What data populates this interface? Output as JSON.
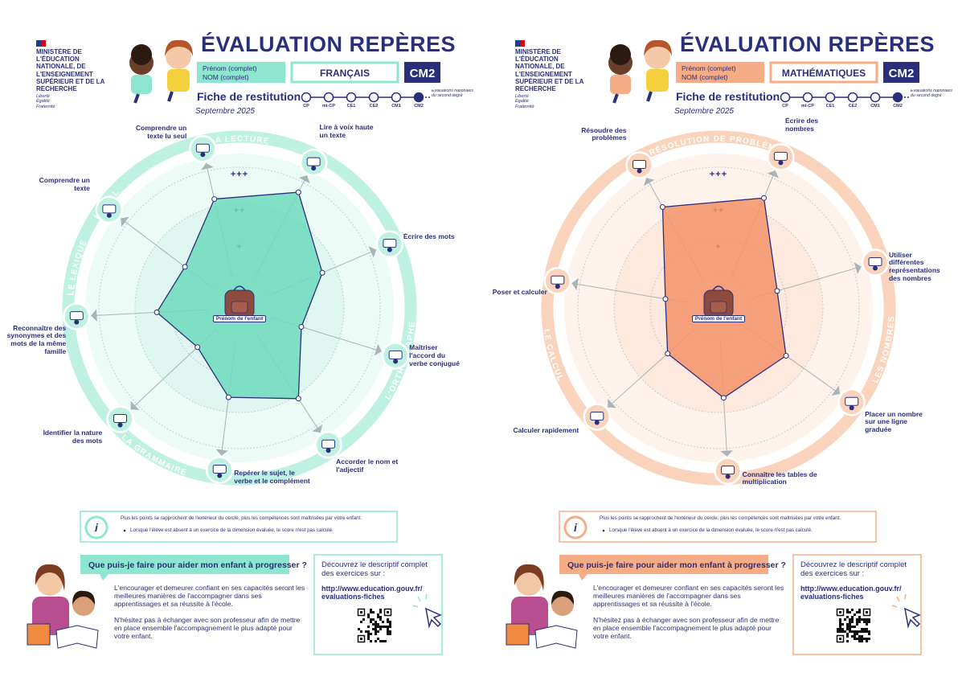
{
  "pages": [
    {
      "ministry": "MINISTÈRE DE L'ÉDUCATION NATIONALE, DE L'ENSEIGNEMENT SUPÉRIEUR ET DE LA RECHERCHE",
      "motto": "Liberté Égalité Fraternité",
      "title": "ÉVALUATION REPÈRES",
      "first_name": "Prénom (complet)",
      "last_name": "NOM (complet)",
      "subject": "FRANÇAIS",
      "grade": "CM2",
      "sheet": "Fiche de restitution",
      "date": "Septembre 2025",
      "timeline": [
        "CP",
        "mi-CP",
        "CE1",
        "CE2",
        "CM1",
        "CM2"
      ],
      "timeline_end": "Évaluations nationales du second degré",
      "radar": {
        "domains": [
          "L'ORAL",
          "LA LECTURE",
          "L'ORTHOGRAPHE",
          "LA GRAMMAIRE",
          "LE LEXIQUE"
        ],
        "axes": [
          {
            "label": "Comprendre un texte lu seul",
            "value": 2.2
          },
          {
            "label": "Lire à voix haute un texte",
            "value": 2.7
          },
          {
            "label": "Écrire des mots",
            "value": 1.6
          },
          {
            "label": "Maîtriser l'accord du verbe conjugué",
            "value": 0.9
          },
          {
            "label": "Accorder le nom et l'adjectif",
            "value": 2.1
          },
          {
            "label": "Repérer le sujet, le verbe et le complément",
            "value": 1.6
          },
          {
            "label": "Identifier la nature des mots",
            "value": 0.7
          },
          {
            "label": "Reconnaître des synonymes et des mots de la même famille",
            "value": 1.4
          },
          {
            "label": "Comprendre un texte",
            "value": 1.0
          }
        ],
        "rlim": [
          0,
          3
        ],
        "rticks": [
          {
            "value": 1,
            "label": "+"
          },
          {
            "value": 2,
            "label": "++"
          },
          {
            "value": 3,
            "label": "+++"
          }
        ],
        "center_label": "Prénom de l'enfant"
      },
      "info": [
        "Plus les points se rapprochent de l'extérieur du cercle, plus les compétences sont maîtrisées par votre enfant.",
        "Lorsque l'élève est absent à un exercice de la dimension évaluée, le score n'est pas calculé."
      ],
      "help": {
        "question": "Que puis-je faire pour aider mon enfant à progresser ?",
        "paragraphs": [
          "L'encourager et demeurer confiant en ses capacités seront les meilleures manières de l'accompagner dans ses apprentissages et sa réussite à l'école.",
          "N'hésitez pas à échanger avec son professeur afin de mettre en place ensemble l'accompagnement le plus adapté pour votre enfant."
        ]
      },
      "resources": {
        "intro": "Découvrez le descriptif complet des exercices sur :",
        "url": "http://www.education.gouv.fr/ evaluations-fiches"
      }
    },
    {
      "ministry": "MINISTÈRE DE L'ÉDUCATION NATIONALE, DE L'ENSEIGNEMENT SUPÉRIEUR ET DE LA RECHERCHE",
      "motto": "Liberté Égalité Fraternité",
      "title": "ÉVALUATION REPÈRES",
      "first_name": "Prénom (complet)",
      "last_name": "NOM (complet)",
      "subject": "MATHÉMATIQUES",
      "grade": "CM2",
      "sheet": "Fiche de restitution",
      "date": "Septembre 2025",
      "timeline": [
        "CP",
        "mi-CP",
        "CE1",
        "CE2",
        "CM1",
        "CM2"
      ],
      "timeline_end": "Évaluations nationales du second degré",
      "radar": {
        "domains": [
          "RÉSOLUTION DE PROBLÈMES",
          "LES NOMBRES",
          "LE CALCUL"
        ],
        "axes": [
          {
            "label": "Résoudre des problèmes",
            "value": 2.3
          },
          {
            "label": "Écrire des nombres",
            "value": 2.4
          },
          {
            "label": "Utiliser différentes représentations des nombres",
            "value": 0.8
          },
          {
            "label": "Placer un nombre sur une ligne graduée",
            "value": 1.4
          },
          {
            "label": "Connaître les tables de multiplication",
            "value": 1.6
          },
          {
            "label": "Calculer rapidement",
            "value": 1.0
          },
          {
            "label": "Poser et calculer",
            "value": 0.6
          }
        ],
        "rlim": [
          0,
          3
        ],
        "rticks": [
          {
            "value": 1,
            "label": "+"
          },
          {
            "value": 2,
            "label": "++"
          },
          {
            "value": 3,
            "label": "+++"
          }
        ],
        "center_label": "Prénom de l'enfant"
      },
      "info": [
        "Plus les points se rapprochent de l'extérieur du cercle, plus les compétences sont maîtrisées par votre enfant.",
        "Lorsque l'élève est absent à un exercice de la dimension évaluée, le score n'est pas calculé."
      ],
      "help": {
        "question": "Que puis-je faire pour aider mon enfant à progresser ?",
        "paragraphs": [
          "L'encourager et demeurer confiant en ses capacités seront les meilleures manières de l'accompagner dans ses apprentissages et sa réussite à l'école.",
          "N'hésitez pas à échanger avec son professeur afin de mettre en place ensemble l'accompagnement le plus adapté pour votre enfant."
        ]
      },
      "resources": {
        "intro": "Découvrez le descriptif complet des exercices sur :",
        "url": "http://www.education.gouv.fr/ evaluations-fiches"
      }
    }
  ]
}
